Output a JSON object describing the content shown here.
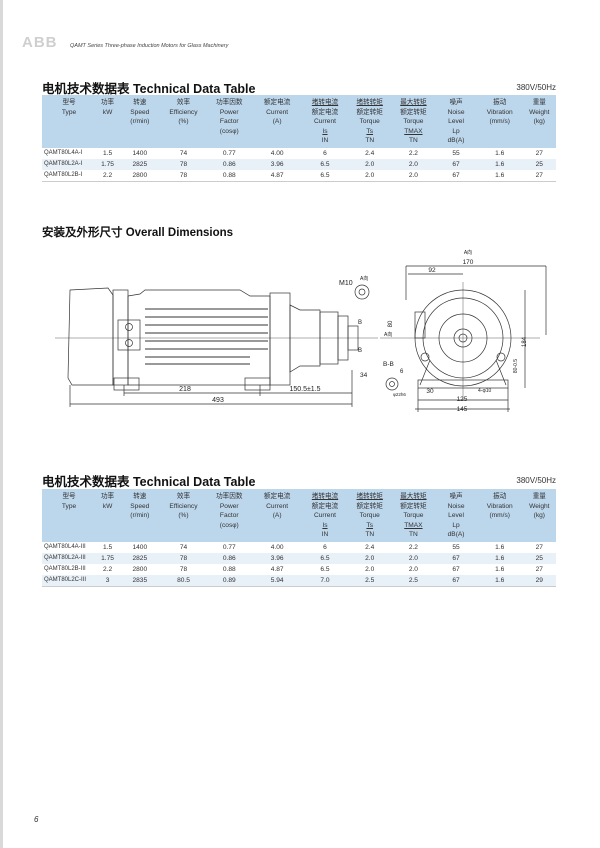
{
  "header": {
    "logo": "ABB",
    "series": "QAMT Series Three-phase Induction Motors for Glass Machinery"
  },
  "table_columns": [
    [
      {
        "t": "型号"
      },
      {
        "t": "Type"
      }
    ],
    [
      {
        "t": "功率"
      },
      {
        "t": "kW"
      }
    ],
    [
      {
        "t": "转速"
      },
      {
        "t": "Speed"
      },
      {
        "t": "(r/min)"
      }
    ],
    [
      {
        "t": "效率"
      },
      {
        "t": "Efficiency"
      },
      {
        "t": "(%)"
      }
    ],
    [
      {
        "t": "功率因数"
      },
      {
        "t": "Power"
      },
      {
        "t": "Factor"
      },
      {
        "t": "(cosφ)"
      }
    ],
    [
      {
        "t": "额定电流"
      },
      {
        "t": "Current"
      },
      {
        "t": "(A)"
      }
    ],
    [
      {
        "t": "堵转电流",
        "u": true
      },
      {
        "t": "额定电流"
      },
      {
        "t": "Current"
      },
      {
        "t": "Is",
        "u": true
      },
      {
        "t": "IN"
      }
    ],
    [
      {
        "t": "堵转转矩",
        "u": true
      },
      {
        "t": "额定转矩"
      },
      {
        "t": "Torque"
      },
      {
        "t": "Ts",
        "u": true
      },
      {
        "t": "TN"
      }
    ],
    [
      {
        "t": "最大转矩",
        "u": true
      },
      {
        "t": "额定转矩"
      },
      {
        "t": "Torque"
      },
      {
        "t": "TMAX",
        "u": true
      },
      {
        "t": "TN"
      }
    ],
    [
      {
        "t": "噪声"
      },
      {
        "t": "Noise"
      },
      {
        "t": "Level"
      },
      {
        "t": "Lp"
      },
      {
        "t": "dB(A)"
      }
    ],
    [
      {
        "t": "振动"
      },
      {
        "t": "Vibration"
      },
      {
        "t": "(mm/s)"
      }
    ],
    [
      {
        "t": "重量"
      },
      {
        "t": "Weight"
      },
      {
        "t": "(kg)"
      }
    ]
  ],
  "table1": {
    "title": "电机技术数据表  Technical Data Table",
    "voltage": "380V/50Hz",
    "rows": [
      [
        "QAMT80L4A-I",
        "1.5",
        "1400",
        "74",
        "0.77",
        "4.00",
        "6",
        "2.4",
        "2.2",
        "55",
        "1.6",
        "27"
      ],
      [
        "QAMT80L2A-I",
        "1.75",
        "2825",
        "78",
        "0.86",
        "3.96",
        "6.5",
        "2.0",
        "2.0",
        "67",
        "1.6",
        "25"
      ],
      [
        "QAMT80L2B-I",
        "2.2",
        "2800",
        "78",
        "0.88",
        "4.87",
        "6.5",
        "2.0",
        "2.0",
        "67",
        "1.6",
        "27"
      ]
    ]
  },
  "dimensions": {
    "title": "安装及外形尺寸  Overall Dimensions",
    "labels": {
      "d218": "218",
      "d150": "150.5±1.5",
      "d493": "493",
      "m10": "M10",
      "a_dir": "A向",
      "a_dir2": "A向",
      "a_dir3": "A向",
      "b1": "B",
      "b2": "B",
      "d34": "34",
      "d170": "170",
      "d92": "92",
      "d184": "184",
      "d80": "80",
      "d80b": "80-0.5",
      "d30": "30",
      "d125": "125",
      "d145": "145",
      "bb": "B-B",
      "d6": "6",
      "phi22": "φ22h6",
      "holes": "4-φ10"
    }
  },
  "table2": {
    "title": "电机技术数据表  Technical Data Table",
    "voltage": "380V/50Hz",
    "rows": [
      [
        "QAMT80L4A-III",
        "1.5",
        "1400",
        "74",
        "0.77",
        "4.00",
        "6",
        "2.4",
        "2.2",
        "55",
        "1.6",
        "27"
      ],
      [
        "QAMT80L2A-III",
        "1.75",
        "2825",
        "78",
        "0.86",
        "3.96",
        "6.5",
        "2.0",
        "2.0",
        "67",
        "1.6",
        "25"
      ],
      [
        "QAMT80L2B-III",
        "2.2",
        "2800",
        "78",
        "0.88",
        "4.87",
        "6.5",
        "2.0",
        "2.0",
        "67",
        "1.6",
        "27"
      ],
      [
        "QAMT80L2C-III",
        "3",
        "2835",
        "80.5",
        "0.89",
        "5.94",
        "7.0",
        "2.5",
        "2.5",
        "67",
        "1.6",
        "29"
      ]
    ]
  },
  "footer": {
    "page": "6"
  }
}
